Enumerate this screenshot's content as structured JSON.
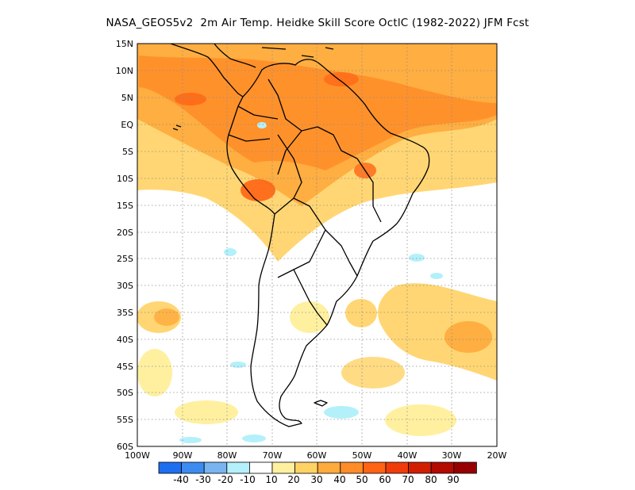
{
  "title": "NASA_GEOS5v2  2m Air Temp. Heidke Skill Score OctlC (1982-2022) JFM Fcst",
  "lat_labels": [
    "15N",
    "10N",
    "5N",
    "EQ",
    "5S",
    "10S",
    "15S",
    "20S",
    "25S",
    "30S",
    "35S",
    "40S",
    "45S",
    "50S",
    "55S",
    "60S"
  ],
  "lon_labels": [
    "100W",
    "90W",
    "80W",
    "70W",
    "60W",
    "50W",
    "40W",
    "30W",
    "20W"
  ],
  "colorbar": {
    "labels": [
      "-40",
      "-30",
      "-20",
      "-10",
      "10",
      "20",
      "30",
      "40",
      "50",
      "60",
      "70",
      "80",
      "90"
    ],
    "colors": [
      "#1e6ef0",
      "#3c8cf0",
      "#78b4f0",
      "#b4f0fa",
      "#ffffff",
      "#fff0a0",
      "#ffd264",
      "#ffaa3c",
      "#ff8c28",
      "#ff6414",
      "#f03c0a",
      "#d21e00",
      "#b40a00",
      "#960000"
    ]
  },
  "colors": {
    "positive_light": "#fff0a0",
    "positive_mid": "#ffd264",
    "positive_strong": "#ffaa3c",
    "positive_high": "#ff8c28",
    "positive_peak": "#ff6414",
    "negative_light": "#b4f0fa",
    "coast": "#000000",
    "grid": "#8c8c8c"
  }
}
